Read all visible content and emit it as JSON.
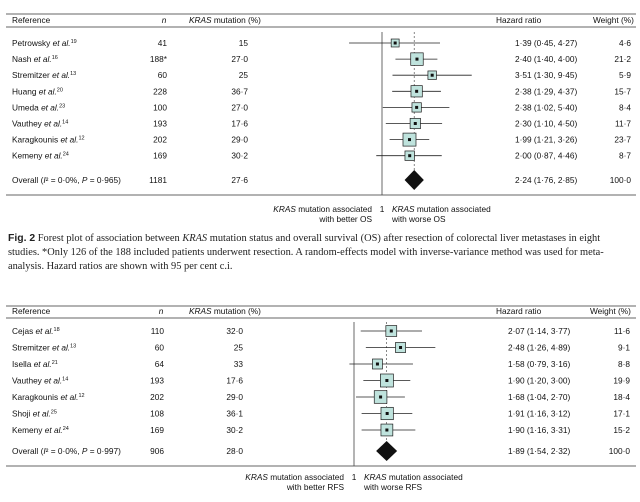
{
  "figures": [
    {
      "id": "plot1",
      "headers": {
        "reference": "Reference",
        "n": "n",
        "mutation_prefix": "KRAS",
        "mutation_suffix": " mutation (%)",
        "hr": "Hazard ratio",
        "weight": "Weight (%)"
      },
      "axis": {
        "left": 0.1,
        "right": 10
      },
      "rows": [
        {
          "ref_name": "Petrowsky",
          "ref_suffix": "19",
          "n": "41",
          "mut": "15",
          "hr": 1.39,
          "lo": 0.45,
          "hi": 4.27,
          "hr_text": "1·39 (0·45, 4·27)",
          "weight": 4.6,
          "weight_text": "4·6"
        },
        {
          "ref_name": "Nash",
          "ref_suffix": "16",
          "n": "188*",
          "mut": "27·0",
          "hr": 2.4,
          "lo": 1.4,
          "hi": 4.0,
          "hr_text": "2·40 (1·40, 4·00)",
          "weight": 21.2,
          "weight_text": "21·2"
        },
        {
          "ref_name": "Stremitzer",
          "ref_suffix": "13",
          "n": "60",
          "mut": "25",
          "hr": 3.51,
          "lo": 1.3,
          "hi": 9.45,
          "hr_text": "3·51 (1·30, 9·45)",
          "weight": 5.9,
          "weight_text": "5·9"
        },
        {
          "ref_name": "Huang",
          "ref_suffix": "20",
          "n": "228",
          "mut": "36·7",
          "hr": 2.38,
          "lo": 1.29,
          "hi": 4.37,
          "hr_text": "2·38 (1·29, 4·37)",
          "weight": 15.7,
          "weight_text": "15·7"
        },
        {
          "ref_name": "Umeda",
          "ref_suffix": "23",
          "n": "100",
          "mut": "27·0",
          "hr": 2.38,
          "lo": 1.02,
          "hi": 5.4,
          "hr_text": "2·38 (1·02, 5·40)",
          "weight": 8.4,
          "weight_text": "8·4"
        },
        {
          "ref_name": "Vauthey",
          "ref_suffix": "14",
          "n": "193",
          "mut": "17·6",
          "hr": 2.3,
          "lo": 1.1,
          "hi": 4.5,
          "hr_text": "2·30 (1·10, 4·50)",
          "weight": 11.7,
          "weight_text": "11·7"
        },
        {
          "ref_name": "Karagkounis",
          "ref_suffix": "12",
          "n": "202",
          "mut": "29·0",
          "hr": 1.99,
          "lo": 1.21,
          "hi": 3.26,
          "hr_text": "1·99 (1·21, 3·26)",
          "weight": 23.7,
          "weight_text": "23·7"
        },
        {
          "ref_name": "Kemeny",
          "ref_suffix": "24",
          "n": "169",
          "mut": "30·2",
          "hr": 2.0,
          "lo": 0.87,
          "hi": 4.46,
          "hr_text": "2·00 (0·87, 4·46)",
          "weight": 8.7,
          "weight_text": "8·7"
        }
      ],
      "overall": {
        "label_prefix": "Overall (",
        "i2": "I",
        "i2_value": "² = 0·0%, ",
        "p": "P",
        "p_value": " = 0·965)",
        "n": "1181",
        "mut": "27·6",
        "hr": 2.24,
        "lo": 1.76,
        "hi": 2.85,
        "hr_text": "2·24 (1·76, 2·85)",
        "weight_text": "100·0"
      },
      "axis_labels": {
        "left_line1_prefix": "KRAS",
        "left_line1_suffix": " mutation associated",
        "left_line2": "with better OS",
        "center": "1",
        "right_line1_prefix": "KRAS",
        "right_line1_suffix": " mutation associated",
        "right_line2": "with worse OS"
      }
    },
    {
      "id": "plot2",
      "headers": {
        "reference": "Reference",
        "n": "n",
        "mutation_prefix": "KRAS",
        "mutation_suffix": " mutation (%)",
        "hr": "Hazard ratio",
        "weight": "Weight (%)"
      },
      "axis": {
        "left": 0.1,
        "right": 10
      },
      "rows": [
        {
          "ref_name": "Cejas",
          "ref_suffix": "18",
          "n": "110",
          "mut": "32·0",
          "hr": 2.07,
          "lo": 1.14,
          "hi": 3.77,
          "hr_text": "2·07 (1·14, 3·77)",
          "weight": 11.6,
          "weight_text": "11·6"
        },
        {
          "ref_name": "Stremitzer",
          "ref_suffix": "13",
          "n": "60",
          "mut": "25",
          "hr": 2.48,
          "lo": 1.26,
          "hi": 4.89,
          "hr_text": "2·48 (1·26, 4·89)",
          "weight": 9.1,
          "weight_text": "9·1"
        },
        {
          "ref_name": "Isella",
          "ref_suffix": "21",
          "n": "64",
          "mut": "33",
          "hr": 1.58,
          "lo": 0.79,
          "hi": 3.16,
          "hr_text": "1·58 (0·79, 3·16)",
          "weight": 8.8,
          "weight_text": "8·8"
        },
        {
          "ref_name": "Vauthey",
          "ref_suffix": "14",
          "n": "193",
          "mut": "17·6",
          "hr": 1.9,
          "lo": 1.2,
          "hi": 3.0,
          "hr_text": "1·90 (1·20, 3·00)",
          "weight": 19.9,
          "weight_text": "19·9"
        },
        {
          "ref_name": "Karagkounis",
          "ref_suffix": "12",
          "n": "202",
          "mut": "29·0",
          "hr": 1.68,
          "lo": 1.04,
          "hi": 2.7,
          "hr_text": "1·68 (1·04, 2·70)",
          "weight": 18.4,
          "weight_text": "18·4"
        },
        {
          "ref_name": "Shoji",
          "ref_suffix": "25",
          "n": "108",
          "mut": "36·1",
          "hr": 1.91,
          "lo": 1.16,
          "hi": 3.12,
          "hr_text": "1·91 (1·16, 3·12)",
          "weight": 17.1,
          "weight_text": "17·1"
        },
        {
          "ref_name": "Kemeny",
          "ref_suffix": "24",
          "n": "169",
          "mut": "30·2",
          "hr": 1.9,
          "lo": 1.16,
          "hi": 3.31,
          "hr_text": "1·90 (1·16, 3·31)",
          "weight": 15.2,
          "weight_text": "15·2"
        }
      ],
      "overall": {
        "label_prefix": "Overall (",
        "i2": "I",
        "i2_value": "² = 0·0%, ",
        "p": "P",
        "p_value": " = 0·997)",
        "n": "906",
        "mut": "28·0",
        "hr": 1.89,
        "lo": 1.54,
        "hi": 2.32,
        "hr_text": "1·89 (1·54, 2·32)",
        "weight_text": "100·0"
      },
      "axis_labels": {
        "left_line1_prefix": "KRAS",
        "left_line1_suffix": " mutation associated",
        "left_line2": "with better RFS",
        "center": "1",
        "right_line1_prefix": "KRAS",
        "right_line1_suffix": " mutation associated",
        "right_line2": "with worse RFS"
      }
    }
  ],
  "caption": {
    "lead": "Fig. 2",
    "part1": " Forest plot of association between ",
    "kras": "KRAS",
    "part2": " mutation status and overall survival (OS) after resection of colorectal liver metastases in eight studies. *Only 126 of the 188 included patients underwent resection. A random-effects model with inverse-variance method was used for meta-analysis. Hazard ratios are shown with 95 per cent c.i."
  },
  "colors": {
    "box_fill": "#bfe3dd",
    "box_stroke": "#1d1d1d",
    "line": "#222222"
  }
}
